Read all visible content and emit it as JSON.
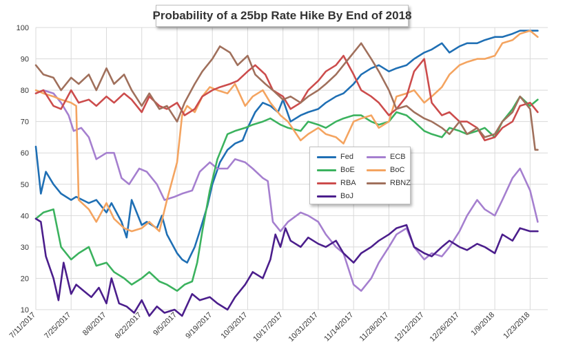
{
  "chart_data": {
    "type": "line",
    "title": "Probability of a 25bp Rate Hike By End of 2018",
    "xlabel": "",
    "ylabel": "",
    "ylim": [
      10,
      100
    ],
    "yticks": [
      10,
      20,
      30,
      40,
      50,
      60,
      70,
      80,
      90,
      100
    ],
    "xlim": [
      "2017-07-11",
      "2018-01-30"
    ],
    "xtick_labels": [
      "7/11/2017",
      "7/25/2017",
      "8/8/2017",
      "8/22/2017",
      "9/5/2017",
      "9/19/2017",
      "10/3/2017",
      "10/17/2017",
      "10/31/2017",
      "11/14/2017",
      "11/28/2017",
      "12/12/2017",
      "12/26/2017",
      "1/9/2018",
      "1/23/2018"
    ],
    "grid": true,
    "legend_position": "center",
    "series": [
      {
        "name": "Fed",
        "color": "#1f6fb4",
        "x": [
          "2017-07-11",
          "2017-07-13",
          "2017-07-15",
          "2017-07-18",
          "2017-07-21",
          "2017-07-25",
          "2017-07-27",
          "2017-08-01",
          "2017-08-04",
          "2017-08-08",
          "2017-08-10",
          "2017-08-14",
          "2017-08-16",
          "2017-08-18",
          "2017-08-22",
          "2017-08-24",
          "2017-08-28",
          "2017-08-30",
          "2017-09-01",
          "2017-09-05",
          "2017-09-07",
          "2017-09-09",
          "2017-09-12",
          "2017-09-14",
          "2017-09-17",
          "2017-09-19",
          "2017-09-22",
          "2017-09-25",
          "2017-09-28",
          "2017-10-01",
          "2017-10-03",
          "2017-10-06",
          "2017-10-09",
          "2017-10-12",
          "2017-10-15",
          "2017-10-17",
          "2017-10-20",
          "2017-10-24",
          "2017-10-27",
          "2017-10-31",
          "2017-11-03",
          "2017-11-07",
          "2017-11-10",
          "2017-11-14",
          "2017-11-17",
          "2017-11-21",
          "2017-11-24",
          "2017-11-28",
          "2017-12-01",
          "2017-12-05",
          "2017-12-08",
          "2017-12-12",
          "2017-12-15",
          "2017-12-19",
          "2017-12-22",
          "2017-12-26",
          "2017-12-29",
          "2018-01-02",
          "2018-01-05",
          "2018-01-09",
          "2018-01-12",
          "2018-01-16",
          "2018-01-19",
          "2018-01-23",
          "2018-01-26"
        ],
        "values": [
          62,
          47,
          54,
          50,
          47,
          45,
          46,
          44,
          45,
          41,
          44,
          38,
          33,
          45,
          37,
          38,
          36,
          40,
          34,
          28,
          26,
          25,
          30,
          35,
          43,
          50,
          57,
          61,
          63,
          64,
          68,
          73,
          76,
          75,
          73,
          77,
          70,
          72,
          73,
          74,
          76,
          78,
          79,
          82,
          85,
          87,
          88,
          86,
          87,
          88,
          90,
          92,
          93,
          95,
          92,
          94,
          95,
          95,
          96,
          97,
          97,
          98,
          99,
          99,
          99
        ]
      },
      {
        "name": "ECB",
        "color": "#a57fcf",
        "x": [
          "2017-07-11",
          "2017-07-14",
          "2017-07-18",
          "2017-07-21",
          "2017-07-24",
          "2017-07-26",
          "2017-07-29",
          "2017-08-01",
          "2017-08-04",
          "2017-08-08",
          "2017-08-11",
          "2017-08-14",
          "2017-08-17",
          "2017-08-21",
          "2017-08-24",
          "2017-08-28",
          "2017-08-31",
          "2017-09-04",
          "2017-09-07",
          "2017-09-11",
          "2017-09-14",
          "2017-09-18",
          "2017-09-21",
          "2017-09-25",
          "2017-09-28",
          "2017-10-02",
          "2017-10-05",
          "2017-10-09",
          "2017-10-11",
          "2017-10-13",
          "2017-10-16",
          "2017-10-19",
          "2017-10-24",
          "2017-10-27",
          "2017-10-31",
          "2017-11-03",
          "2017-11-07",
          "2017-11-10",
          "2017-11-14",
          "2017-11-17",
          "2017-11-21",
          "2017-11-24",
          "2017-11-28",
          "2017-12-01",
          "2017-12-05",
          "2017-12-08",
          "2017-12-12",
          "2017-12-15",
          "2017-12-19",
          "2017-12-22",
          "2017-12-26",
          "2017-12-29",
          "2018-01-02",
          "2018-01-05",
          "2018-01-09",
          "2018-01-12",
          "2018-01-16",
          "2018-01-19",
          "2018-01-23",
          "2018-01-26"
        ],
        "values": [
          79,
          80,
          79,
          76,
          72,
          67,
          68,
          65,
          58,
          60,
          60,
          52,
          50,
          55,
          54,
          50,
          45,
          46,
          47,
          48,
          54,
          57,
          55,
          55,
          58,
          57,
          55,
          52,
          51,
          38,
          35,
          38,
          41,
          40,
          38,
          34,
          30,
          28,
          18,
          16,
          20,
          25,
          30,
          34,
          36,
          30,
          26,
          28,
          27,
          30,
          35,
          40,
          45,
          42,
          40,
          45,
          52,
          55,
          48,
          38
        ]
      },
      {
        "name": "BoE",
        "color": "#3bb25e",
        "x": [
          "2017-07-11",
          "2017-07-14",
          "2017-07-18",
          "2017-07-21",
          "2017-07-25",
          "2017-07-28",
          "2017-08-01",
          "2017-08-04",
          "2017-08-08",
          "2017-08-11",
          "2017-08-15",
          "2017-08-18",
          "2017-08-22",
          "2017-08-25",
          "2017-08-29",
          "2017-09-01",
          "2017-09-05",
          "2017-09-08",
          "2017-09-11",
          "2017-09-13",
          "2017-09-15",
          "2017-09-18",
          "2017-09-21",
          "2017-09-25",
          "2017-09-28",
          "2017-10-02",
          "2017-10-05",
          "2017-10-09",
          "2017-10-12",
          "2017-10-16",
          "2017-10-19",
          "2017-10-24",
          "2017-10-27",
          "2017-10-31",
          "2017-11-03",
          "2017-11-07",
          "2017-11-10",
          "2017-11-14",
          "2017-11-17",
          "2017-11-21",
          "2017-11-24",
          "2017-11-28",
          "2017-12-01",
          "2017-12-05",
          "2017-12-08",
          "2017-12-12",
          "2017-12-15",
          "2017-12-19",
          "2017-12-22",
          "2017-12-26",
          "2017-12-29",
          "2018-01-02",
          "2018-01-05",
          "2018-01-09",
          "2018-01-12",
          "2018-01-16",
          "2018-01-19",
          "2018-01-23",
          "2018-01-26"
        ],
        "values": [
          39,
          41,
          42,
          30,
          26,
          28,
          30,
          24,
          25,
          22,
          20,
          18,
          20,
          22,
          19,
          18,
          16,
          18,
          19,
          25,
          35,
          48,
          58,
          66,
          67,
          68,
          69,
          70,
          71,
          69,
          68,
          67,
          70,
          69,
          68,
          70,
          71,
          72,
          72,
          70,
          69,
          70,
          73,
          72,
          70,
          67,
          66,
          65,
          68,
          67,
          66,
          67,
          68,
          65,
          70,
          74,
          78,
          75,
          77
        ]
      },
      {
        "name": "BoC",
        "color": "#f4a460",
        "x": [
          "2017-07-11",
          "2017-07-14",
          "2017-07-18",
          "2017-07-21",
          "2017-07-25",
          "2017-07-27",
          "2017-07-28",
          "2017-08-01",
          "2017-08-04",
          "2017-08-08",
          "2017-08-11",
          "2017-08-15",
          "2017-08-18",
          "2017-08-22",
          "2017-08-25",
          "2017-08-29",
          "2017-09-01",
          "2017-09-05",
          "2017-09-07",
          "2017-09-09",
          "2017-09-12",
          "2017-09-15",
          "2017-09-18",
          "2017-09-21",
          "2017-09-25",
          "2017-09-28",
          "2017-10-02",
          "2017-10-05",
          "2017-10-09",
          "2017-10-12",
          "2017-10-16",
          "2017-10-19",
          "2017-10-24",
          "2017-10-27",
          "2017-10-31",
          "2017-11-03",
          "2017-11-07",
          "2017-11-10",
          "2017-11-14",
          "2017-11-17",
          "2017-11-21",
          "2017-11-24",
          "2017-11-28",
          "2017-12-01",
          "2017-12-05",
          "2017-12-08",
          "2017-12-12",
          "2017-12-15",
          "2017-12-19",
          "2017-12-22",
          "2017-12-26",
          "2017-12-29",
          "2018-01-02",
          "2018-01-05",
          "2018-01-09",
          "2018-01-12",
          "2018-01-16",
          "2018-01-19",
          "2018-01-23",
          "2018-01-26"
        ],
        "values": [
          80,
          79,
          78,
          77,
          76,
          75,
          45,
          42,
          38,
          44,
          39,
          36,
          35,
          36,
          38,
          35,
          45,
          57,
          72,
          75,
          73,
          78,
          81,
          80,
          79,
          82,
          75,
          78,
          80,
          76,
          72,
          70,
          64,
          66,
          68,
          66,
          65,
          63,
          70,
          71,
          72,
          68,
          70,
          78,
          79,
          80,
          76,
          78,
          81,
          85,
          88,
          89,
          90,
          90,
          91,
          95,
          96,
          98,
          99,
          97
        ]
      },
      {
        "name": "RBA",
        "color": "#cc4c4c",
        "x": [
          "2017-07-11",
          "2017-07-14",
          "2017-07-18",
          "2017-07-21",
          "2017-07-25",
          "2017-07-28",
          "2017-08-01",
          "2017-08-04",
          "2017-08-08",
          "2017-08-11",
          "2017-08-15",
          "2017-08-18",
          "2017-08-22",
          "2017-08-25",
          "2017-08-29",
          "2017-09-01",
          "2017-09-05",
          "2017-09-08",
          "2017-09-12",
          "2017-09-15",
          "2017-09-19",
          "2017-09-22",
          "2017-09-26",
          "2017-09-29",
          "2017-10-03",
          "2017-10-06",
          "2017-10-10",
          "2017-10-13",
          "2017-10-17",
          "2017-10-20",
          "2017-10-24",
          "2017-10-27",
          "2017-10-31",
          "2017-11-03",
          "2017-11-07",
          "2017-11-10",
          "2017-11-14",
          "2017-11-17",
          "2017-11-21",
          "2017-11-24",
          "2017-11-28",
          "2017-12-01",
          "2017-12-05",
          "2017-12-08",
          "2017-12-12",
          "2017-12-15",
          "2017-12-19",
          "2017-12-22",
          "2017-12-26",
          "2017-12-29",
          "2018-01-02",
          "2018-01-05",
          "2018-01-09",
          "2018-01-12",
          "2018-01-16",
          "2018-01-19",
          "2018-01-23",
          "2018-01-26"
        ],
        "values": [
          79,
          80,
          75,
          74,
          80,
          76,
          77,
          75,
          78,
          76,
          79,
          77,
          73,
          78,
          75,
          74,
          76,
          72,
          74,
          78,
          80,
          81,
          82,
          83,
          86,
          88,
          85,
          80,
          78,
          74,
          76,
          80,
          83,
          86,
          88,
          91,
          85,
          80,
          78,
          76,
          72,
          74,
          78,
          86,
          90,
          76,
          72,
          73,
          70,
          70,
          68,
          64,
          65,
          68,
          70,
          75,
          76,
          73
        ]
      },
      {
        "name": "RBNZ",
        "color": "#a0705c",
        "x": [
          "2017-07-11",
          "2017-07-14",
          "2017-07-18",
          "2017-07-21",
          "2017-07-25",
          "2017-07-28",
          "2017-08-01",
          "2017-08-04",
          "2017-08-08",
          "2017-08-11",
          "2017-08-15",
          "2017-08-18",
          "2017-08-22",
          "2017-08-25",
          "2017-08-29",
          "2017-09-01",
          "2017-09-05",
          "2017-09-08",
          "2017-09-12",
          "2017-09-15",
          "2017-09-19",
          "2017-09-22",
          "2017-09-26",
          "2017-09-29",
          "2017-10-03",
          "2017-10-06",
          "2017-10-10",
          "2017-10-13",
          "2017-10-17",
          "2017-10-20",
          "2017-10-24",
          "2017-10-27",
          "2017-10-31",
          "2017-11-03",
          "2017-11-07",
          "2017-11-10",
          "2017-11-14",
          "2017-11-17",
          "2017-11-21",
          "2017-11-24",
          "2017-11-28",
          "2017-12-01",
          "2017-12-05",
          "2017-12-08",
          "2017-12-12",
          "2017-12-15",
          "2017-12-19",
          "2017-12-22",
          "2017-12-26",
          "2017-12-29",
          "2018-01-02",
          "2018-01-05",
          "2018-01-09",
          "2018-01-12",
          "2018-01-16",
          "2018-01-19",
          "2018-01-23",
          "2018-01-25",
          "2018-01-26"
        ],
        "values": [
          88,
          85,
          84,
          80,
          84,
          82,
          85,
          80,
          87,
          82,
          85,
          80,
          75,
          79,
          74,
          75,
          70,
          76,
          82,
          86,
          90,
          94,
          92,
          88,
          91,
          85,
          82,
          80,
          77,
          78,
          76,
          78,
          80,
          82,
          85,
          88,
          92,
          95,
          90,
          86,
          80,
          74,
          75,
          73,
          71,
          70,
          68,
          66,
          70,
          66,
          68,
          65,
          66,
          70,
          73,
          78,
          74,
          61,
          61
        ]
      },
      {
        "name": "BoJ",
        "color": "#4b1e8c",
        "x": [
          "2017-07-11",
          "2017-07-13",
          "2017-07-15",
          "2017-07-18",
          "2017-07-20",
          "2017-07-22",
          "2017-07-25",
          "2017-07-27",
          "2017-07-30",
          "2017-08-02",
          "2017-08-05",
          "2017-08-08",
          "2017-08-10",
          "2017-08-13",
          "2017-08-16",
          "2017-08-19",
          "2017-08-22",
          "2017-08-25",
          "2017-08-28",
          "2017-08-31",
          "2017-09-04",
          "2017-09-07",
          "2017-09-11",
          "2017-09-14",
          "2017-09-18",
          "2017-09-21",
          "2017-09-25",
          "2017-09-28",
          "2017-10-02",
          "2017-10-05",
          "2017-10-09",
          "2017-10-12",
          "2017-10-14",
          "2017-10-16",
          "2017-10-18",
          "2017-10-20",
          "2017-10-24",
          "2017-10-27",
          "2017-10-31",
          "2017-11-03",
          "2017-11-07",
          "2017-11-10",
          "2017-11-14",
          "2017-11-17",
          "2017-11-21",
          "2017-11-24",
          "2017-11-28",
          "2017-12-01",
          "2017-12-05",
          "2017-12-08",
          "2017-12-12",
          "2017-12-15",
          "2017-12-19",
          "2017-12-22",
          "2017-12-26",
          "2017-12-29",
          "2018-01-02",
          "2018-01-05",
          "2018-01-09",
          "2018-01-12",
          "2018-01-16",
          "2018-01-19",
          "2018-01-23",
          "2018-01-26"
        ],
        "values": [
          39,
          38,
          27,
          20,
          13,
          25,
          15,
          18,
          16,
          14,
          17,
          12,
          20,
          12,
          11,
          9,
          13,
          8,
          11,
          9,
          10,
          8,
          15,
          13,
          14,
          12,
          10,
          14,
          18,
          22,
          20,
          26,
          34,
          30,
          36,
          32,
          30,
          33,
          31,
          30,
          32,
          28,
          25,
          28,
          30,
          32,
          34,
          36,
          37,
          30,
          28,
          27,
          30,
          32,
          30,
          29,
          31,
          30,
          28,
          34,
          32,
          36,
          35,
          35
        ]
      }
    ]
  }
}
